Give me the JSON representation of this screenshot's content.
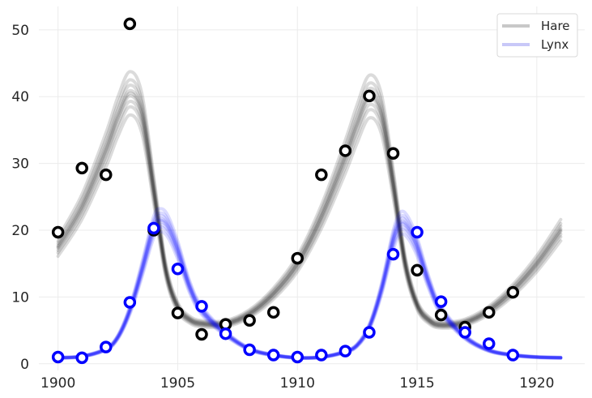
{
  "chart_data": {
    "type": "line",
    "title": "",
    "xlabel": "",
    "ylabel": "",
    "xlim": [
      1899.2,
      1922
    ],
    "ylim": [
      -1,
      53.5
    ],
    "x_ticks": [
      1900,
      1905,
      1910,
      1915,
      1920
    ],
    "y_ticks": [
      0,
      10,
      20,
      30,
      40,
      50
    ],
    "grid": true,
    "legend_position": "top-right",
    "legend": [
      {
        "label": "Hare",
        "color": "#c8c8c8"
      },
      {
        "label": "Lynx",
        "color": "#c8c8f8"
      }
    ],
    "series": [
      {
        "name": "Hare",
        "kind": "observed",
        "color": "#000000",
        "x": [
          1900,
          1901,
          1902,
          1903,
          1904,
          1905,
          1906,
          1907,
          1908,
          1909,
          1910,
          1911,
          1912,
          1913,
          1914,
          1915,
          1916,
          1917,
          1918,
          1919
        ],
        "y": [
          19.7,
          29.3,
          28.3,
          50.9,
          20.0,
          7.6,
          4.4,
          5.9,
          6.5,
          7.7,
          15.8,
          28.3,
          31.9,
          40.1,
          31.5,
          14.0,
          7.3,
          5.5,
          7.7,
          10.7
        ]
      },
      {
        "name": "Lynx",
        "kind": "observed",
        "color": "#0000ff",
        "x": [
          1900,
          1901,
          1902,
          1903,
          1904,
          1905,
          1906,
          1907,
          1908,
          1909,
          1910,
          1911,
          1912,
          1913,
          1914,
          1915,
          1916,
          1917,
          1918,
          1919
        ],
        "y": [
          1.0,
          0.9,
          2.5,
          9.2,
          20.3,
          14.2,
          8.6,
          4.5,
          2.1,
          1.3,
          1.0,
          1.3,
          1.9,
          4.7,
          16.4,
          19.7,
          9.3,
          4.7,
          3.0,
          1.3
        ]
      },
      {
        "name": "Hare",
        "kind": "posterior_fit",
        "color": "#000000",
        "x": [
          1900,
          1901,
          1902,
          1902.5,
          1903,
          1903.5,
          1904,
          1904.5,
          1905,
          1905.5,
          1906,
          1907,
          1908,
          1909,
          1910,
          1911,
          1912,
          1912.5,
          1913,
          1913.5,
          1914,
          1914.5,
          1915,
          1915.5,
          1916,
          1917,
          1918,
          1919,
          1920,
          1921
        ],
        "y": [
          17.5,
          23.5,
          32.0,
          37.0,
          40.5,
          37.5,
          26.0,
          14.0,
          8.5,
          6.6,
          6.0,
          6.0,
          7.5,
          10.5,
          15.0,
          22.0,
          31.0,
          36.0,
          40.0,
          37.5,
          27.0,
          15.0,
          8.8,
          6.5,
          5.8,
          6.2,
          8.0,
          11.0,
          15.0,
          20.0
        ]
      },
      {
        "name": "Lynx",
        "kind": "posterior_fit",
        "color": "#0000ff",
        "x": [
          1900,
          1901,
          1902,
          1902.5,
          1903,
          1903.5,
          1904,
          1904.3,
          1904.6,
          1905,
          1905.5,
          1906,
          1907,
          1908,
          1909,
          1910,
          1911,
          1912,
          1912.5,
          1913,
          1913.5,
          1914,
          1914.3,
          1914.6,
          1915,
          1915.5,
          1916,
          1917,
          1918,
          1919,
          1920,
          1921
        ],
        "y": [
          0.9,
          1.1,
          2.2,
          4.0,
          8.0,
          14.0,
          20.5,
          21.5,
          20.5,
          17.0,
          11.5,
          8.0,
          4.5,
          2.2,
          1.3,
          0.9,
          1.0,
          1.8,
          2.8,
          5.5,
          11.0,
          18.5,
          21.0,
          20.5,
          17.5,
          12.0,
          8.0,
          4.0,
          2.0,
          1.3,
          1.0,
          0.9
        ]
      }
    ]
  }
}
